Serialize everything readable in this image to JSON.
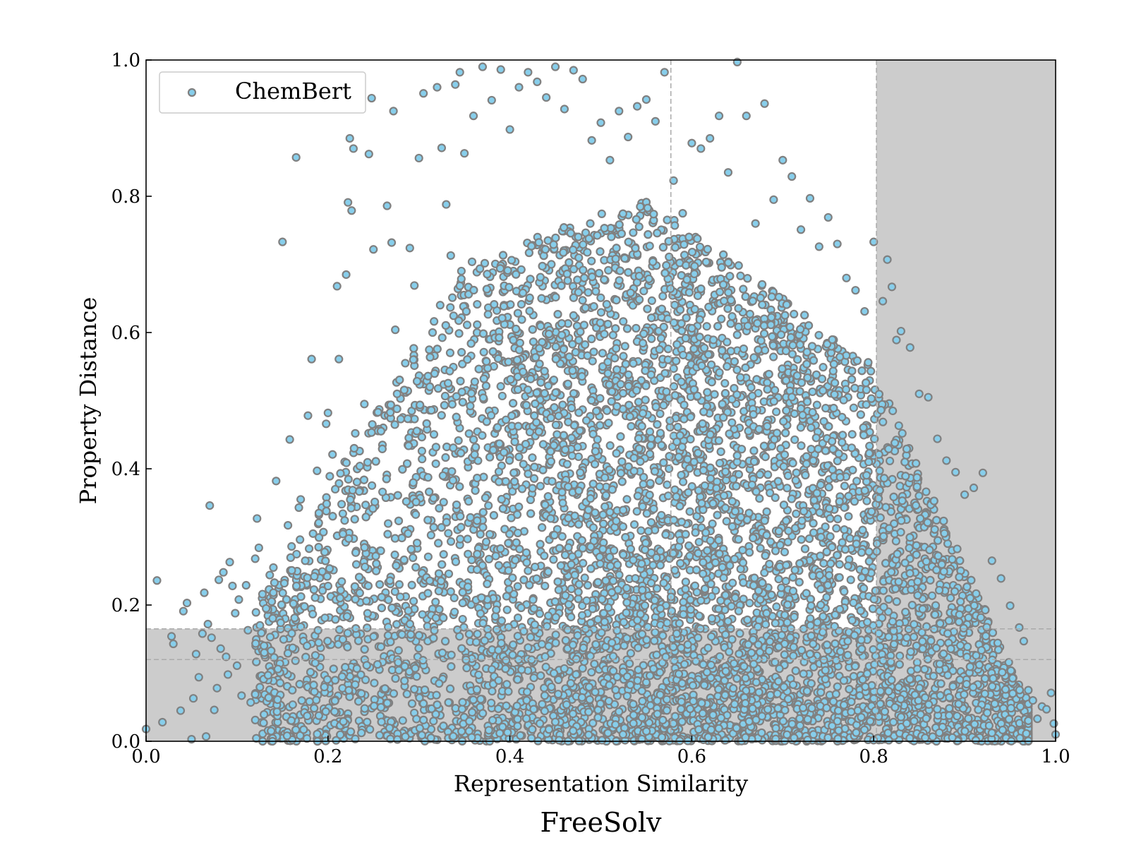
{
  "chart_data": {
    "type": "scatter",
    "title": "FreeSolv",
    "xlabel": "Representation Similarity",
    "ylabel": "Property Distance",
    "xlim": [
      0.0,
      1.0
    ],
    "ylim": [
      0.0,
      1.0
    ],
    "xticks": [
      "0.0",
      "0.2",
      "0.4",
      "0.6",
      "0.8",
      "1.0"
    ],
    "yticks": [
      "0.0",
      "0.2",
      "0.4",
      "0.6",
      "0.8",
      "1.0"
    ],
    "grid": false,
    "legend_position": "top-left",
    "series": [
      {
        "name": "ChemBert",
        "fill_color": "#87ceeb",
        "edge_color": "#808080",
        "points": [
          [
            0.0,
            0.018
          ],
          [
            0.012,
            0.236
          ],
          [
            0.018,
            0.028
          ],
          [
            0.028,
            0.154
          ],
          [
            0.03,
            0.143
          ],
          [
            0.038,
            0.045
          ],
          [
            0.041,
            0.191
          ],
          [
            0.045,
            0.203
          ],
          [
            0.05,
            0.003
          ],
          [
            0.052,
            0.063
          ],
          [
            0.055,
            0.128
          ],
          [
            0.058,
            0.094
          ],
          [
            0.062,
            0.158
          ],
          [
            0.064,
            0.218
          ],
          [
            0.066,
            0.007
          ],
          [
            0.068,
            0.172
          ],
          [
            0.07,
            0.346
          ],
          [
            0.072,
            0.152
          ],
          [
            0.075,
            0.046
          ],
          [
            0.078,
            0.078
          ],
          [
            0.08,
            0.237
          ],
          [
            0.082,
            0.136
          ],
          [
            0.085,
            0.248
          ],
          [
            0.088,
            0.124
          ],
          [
            0.09,
            0.098
          ],
          [
            0.092,
            0.263
          ],
          [
            0.095,
            0.228
          ],
          [
            0.098,
            0.188
          ],
          [
            0.1,
            0.111
          ],
          [
            0.102,
            0.208
          ],
          [
            0.105,
            0.067
          ],
          [
            0.11,
            0.229
          ],
          [
            0.112,
            0.163
          ],
          [
            0.115,
            0.057
          ],
          [
            0.12,
            0.268
          ],
          [
            0.122,
            0.327
          ],
          [
            0.124,
            0.284
          ],
          [
            0.128,
            0.216
          ],
          [
            0.13,
            0.13
          ],
          [
            0.132,
            0.195
          ],
          [
            0.136,
            0.244
          ],
          [
            0.14,
            0.255
          ],
          [
            0.143,
            0.382
          ],
          [
            0.145,
            0.106
          ],
          [
            0.148,
            0.174
          ],
          [
            0.15,
            0.733
          ],
          [
            0.152,
            0.232
          ],
          [
            0.156,
            0.317
          ],
          [
            0.158,
            0.443
          ],
          [
            0.16,
            0.286
          ],
          [
            0.162,
            0.202
          ],
          [
            0.165,
            0.857
          ],
          [
            0.168,
            0.343
          ],
          [
            0.17,
            0.355
          ],
          [
            0.175,
            0.265
          ],
          [
            0.178,
            0.478
          ],
          [
            0.182,
            0.561
          ],
          [
            0.185,
            0.242
          ],
          [
            0.188,
            0.397
          ],
          [
            0.19,
            0.335
          ],
          [
            0.195,
            0.307
          ],
          [
            0.198,
            0.466
          ],
          [
            0.2,
            0.482
          ],
          [
            0.202,
            0.389
          ],
          [
            0.205,
            0.421
          ],
          [
            0.208,
            0.37
          ],
          [
            0.21,
            0.668
          ],
          [
            0.212,
            0.561
          ],
          [
            0.215,
            0.348
          ],
          [
            0.22,
            0.685
          ],
          [
            0.222,
            0.791
          ],
          [
            0.224,
            0.885
          ],
          [
            0.226,
            0.779
          ],
          [
            0.228,
            0.87
          ],
          [
            0.23,
            0.452
          ],
          [
            0.235,
            0.404
          ],
          [
            0.24,
            0.495
          ],
          [
            0.245,
            0.862
          ],
          [
            0.248,
            0.944
          ],
          [
            0.25,
            0.722
          ],
          [
            0.255,
            0.483
          ],
          [
            0.26,
            0.366
          ],
          [
            0.265,
            0.786
          ],
          [
            0.27,
            0.732
          ],
          [
            0.272,
            0.925
          ],
          [
            0.274,
            0.604
          ],
          [
            0.276,
            0.51
          ],
          [
            0.28,
            0.473
          ],
          [
            0.285,
            0.555
          ],
          [
            0.29,
            0.724
          ],
          [
            0.295,
            0.669
          ],
          [
            0.3,
            0.856
          ],
          [
            0.305,
            0.951
          ],
          [
            0.31,
            0.536
          ],
          [
            0.315,
            0.6
          ],
          [
            0.32,
            0.96
          ],
          [
            0.325,
            0.871
          ],
          [
            0.33,
            0.788
          ],
          [
            0.335,
            0.713
          ],
          [
            0.34,
            0.964
          ],
          [
            0.345,
            0.982
          ],
          [
            0.35,
            0.863
          ],
          [
            0.36,
            0.918
          ],
          [
            0.37,
            0.99
          ],
          [
            0.38,
            0.941
          ],
          [
            0.39,
            0.986
          ],
          [
            0.4,
            0.898
          ],
          [
            0.41,
            0.96
          ],
          [
            0.42,
            0.982
          ],
          [
            0.43,
            0.968
          ],
          [
            0.44,
            0.945
          ],
          [
            0.45,
            0.99
          ],
          [
            0.46,
            0.928
          ],
          [
            0.47,
            0.985
          ],
          [
            0.48,
            0.972
          ],
          [
            0.49,
            0.882
          ],
          [
            0.5,
            0.908
          ],
          [
            0.51,
            0.853
          ],
          [
            0.52,
            0.925
          ],
          [
            0.53,
            0.887
          ],
          [
            0.54,
            0.932
          ],
          [
            0.55,
            0.942
          ],
          [
            0.56,
            0.91
          ],
          [
            0.57,
            0.982
          ],
          [
            0.58,
            0.823
          ],
          [
            0.59,
            0.775
          ],
          [
            0.6,
            0.878
          ],
          [
            0.61,
            0.87
          ],
          [
            0.62,
            0.885
          ],
          [
            0.63,
            0.918
          ],
          [
            0.64,
            0.835
          ],
          [
            0.65,
            0.997
          ],
          [
            0.66,
            0.918
          ],
          [
            0.67,
            0.76
          ],
          [
            0.68,
            0.936
          ],
          [
            0.69,
            0.795
          ],
          [
            0.7,
            0.853
          ],
          [
            0.71,
            0.829
          ],
          [
            0.72,
            0.751
          ],
          [
            0.73,
            0.797
          ],
          [
            0.74,
            0.726
          ],
          [
            0.75,
            0.769
          ],
          [
            0.76,
            0.73
          ],
          [
            0.77,
            0.68
          ],
          [
            0.78,
            0.662
          ],
          [
            0.79,
            0.631
          ],
          [
            0.8,
            0.733
          ],
          [
            0.81,
            0.646
          ],
          [
            0.815,
            0.707
          ],
          [
            0.82,
            0.667
          ],
          [
            0.825,
            0.589
          ],
          [
            0.83,
            0.602
          ],
          [
            0.84,
            0.578
          ],
          [
            0.85,
            0.51
          ],
          [
            0.86,
            0.505
          ],
          [
            0.87,
            0.444
          ],
          [
            0.88,
            0.412
          ],
          [
            0.89,
            0.395
          ],
          [
            0.9,
            0.362
          ],
          [
            0.91,
            0.372
          ],
          [
            0.92,
            0.394
          ],
          [
            0.93,
            0.265
          ],
          [
            0.94,
            0.239
          ],
          [
            0.95,
            0.199
          ],
          [
            0.96,
            0.167
          ],
          [
            0.965,
            0.147
          ],
          [
            0.97,
            0.075
          ],
          [
            0.975,
            0.06
          ],
          [
            0.98,
            0.033
          ],
          [
            0.985,
            0.051
          ],
          [
            0.99,
            0.047
          ],
          [
            0.995,
            0.071
          ],
          [
            0.998,
            0.026
          ],
          [
            1.0,
            0.01
          ]
        ]
      }
    ]
  }
}
